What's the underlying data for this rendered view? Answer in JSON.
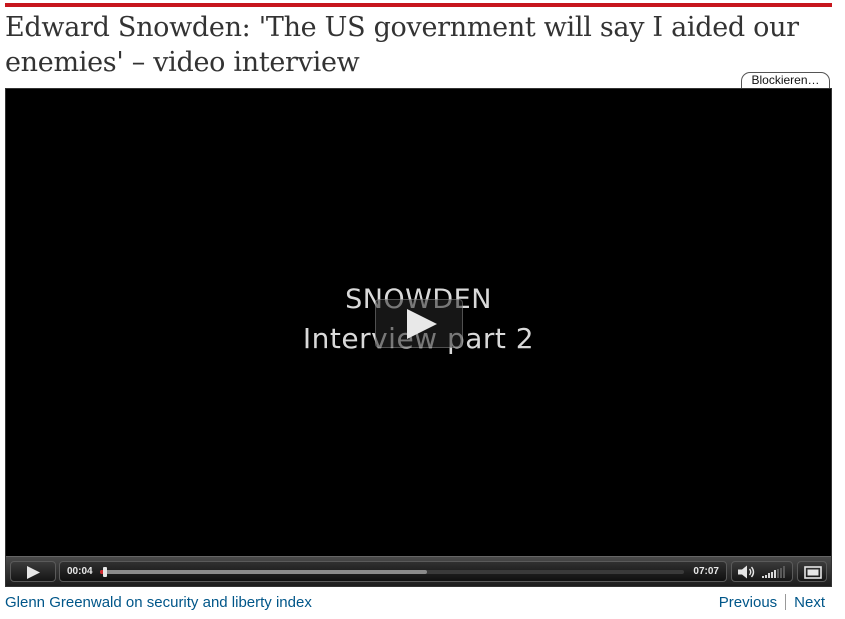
{
  "article": {
    "headline": "Edward Snowden: 'The US government will say I aided our enemies' – video interview"
  },
  "plugin": {
    "block_label": "Blockieren…"
  },
  "video": {
    "title_line1": "SNOWDEN",
    "title_line2": "Interview part 2",
    "current_time": "00:04",
    "duration": "07:07",
    "progress": 0.0094,
    "buffered": 0.56,
    "volume_level": 0.6
  },
  "footer": {
    "series_link": "Glenn Greenwald on security and liberty index",
    "previous_label": "Previous",
    "next_label": "Next"
  },
  "colors": {
    "accent_rule": "#c7161d",
    "link": "#005689",
    "progress": "#d0282e"
  }
}
